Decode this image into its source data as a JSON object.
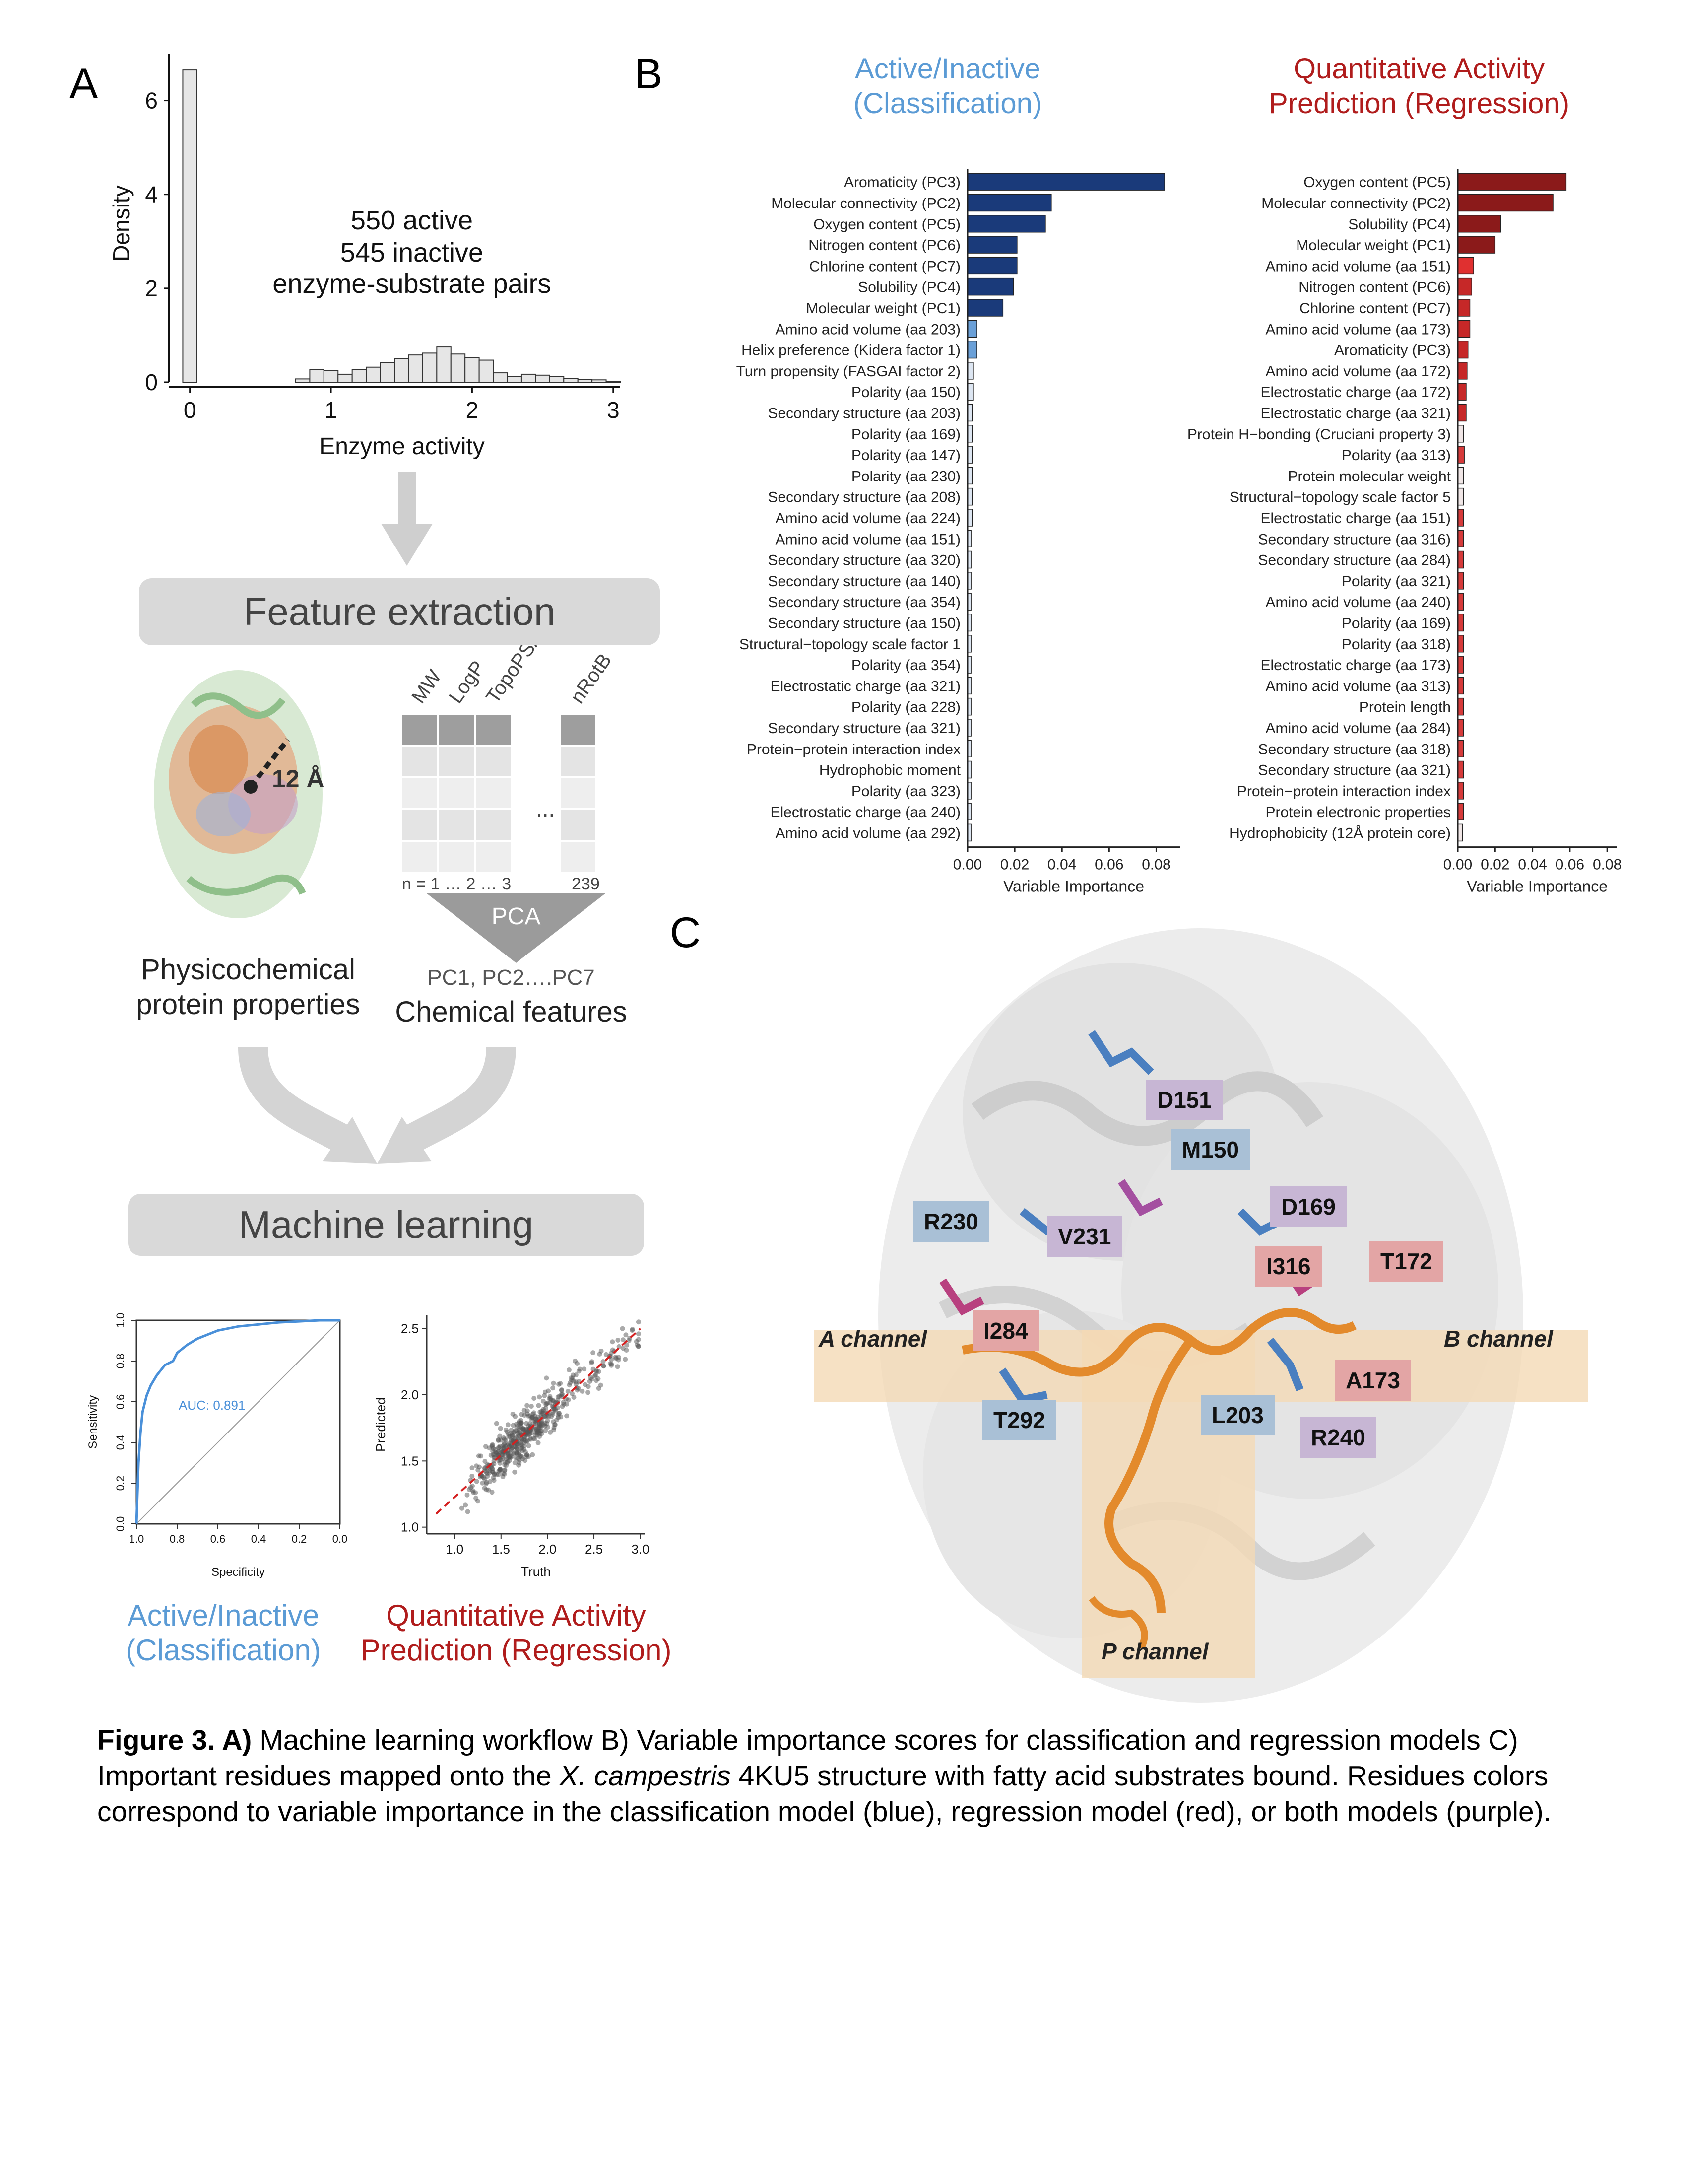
{
  "panel_labels": {
    "a": "A",
    "b": "B",
    "c": "C"
  },
  "panelA": {
    "histogram": {
      "ylabel": "Density",
      "xlabel": "Enzyme activity",
      "yticks": [
        "0",
        "2",
        "4",
        "6"
      ],
      "xticks": [
        "0",
        "1",
        "2",
        "3"
      ],
      "annot_line1": "550 active",
      "annot_line2": "545 inactive",
      "annot_line3": "enzyme-substrate pairs"
    },
    "feature_extraction": "Feature extraction",
    "distance_label": "12 Å",
    "matrix_cols": [
      "MW",
      "LogP",
      "TopoPSA",
      "nRotB"
    ],
    "matrix_ellipsis": "...",
    "matrix_index": "n = 1 … 2 … 3",
    "matrix_last": "239",
    "pca": "PCA",
    "pc_range": "PC1, PC2….PC7",
    "chem_features": "Chemical features",
    "physchem_line1": "Physicochemical",
    "physchem_line2": "protein properties",
    "machine_learning": "Machine learning",
    "roc": {
      "xlabel": "Specificity",
      "ylabel": "Sensitivity",
      "auc": "AUC: 0.891",
      "xticks": [
        "1.0",
        "0.8",
        "0.6",
        "0.4",
        "0.2",
        "0.0"
      ],
      "yticks": [
        "0.0",
        "0.2",
        "0.4",
        "0.6",
        "0.8",
        "1.0"
      ]
    },
    "scatter": {
      "xlabel": "Truth",
      "ylabel": "Predicted",
      "xticks": [
        "1.0",
        "1.5",
        "2.0",
        "2.5",
        "3.0"
      ],
      "yticks": [
        "1.0",
        "1.5",
        "2.0",
        "2.5"
      ]
    },
    "class_line1": "Active/Inactive",
    "class_line2": "(Classification)",
    "reg_line1": "Quantitative Activity",
    "reg_line2": "Prediction (Regression)"
  },
  "panelB": {
    "class_title1": "Active/Inactive",
    "class_title2": "(Classification)",
    "reg_title1": "Quantitative Activity",
    "reg_title2": "Prediction (Regression)",
    "xlabel": "Variable Importance"
  },
  "panelC": {
    "channels": [
      "A channel",
      "B channel",
      "P channel"
    ],
    "residues": [
      "D151",
      "M150",
      "R230",
      "V231",
      "D169",
      "I316",
      "T172",
      "I284",
      "A173",
      "L203",
      "R240",
      "T292"
    ]
  },
  "caption": {
    "bold": "Figure 3. A)",
    "part1": " Machine learning workflow B) Variable importance scores for classification and regression models C) Important residues mapped onto the ",
    "italic": "X. campestris",
    "part2": " 4KU5 structure with fatty acid  substrates bound. Residues colors correspond to variable importance in the classification model (blue), regression model (red), or both models (purple)."
  },
  "chart_data": [
    {
      "type": "bar",
      "id": "histogram",
      "xlabel": "Enzyme activity",
      "ylabel": "Density",
      "xlim": [
        -0.1,
        3.1
      ],
      "ylim": [
        0,
        7
      ],
      "bin_width": 0.1,
      "bin_starts": [
        0.0,
        0.8,
        0.9,
        1.0,
        1.1,
        1.2,
        1.3,
        1.4,
        1.5,
        1.6,
        1.7,
        1.8,
        1.9,
        2.0,
        2.1,
        2.2,
        2.3,
        2.4,
        2.5,
        2.6,
        2.7,
        2.8,
        2.9,
        3.0
      ],
      "values": [
        6.65,
        0.07,
        0.27,
        0.25,
        0.17,
        0.27,
        0.32,
        0.42,
        0.5,
        0.58,
        0.62,
        0.75,
        0.6,
        0.52,
        0.47,
        0.2,
        0.12,
        0.17,
        0.15,
        0.12,
        0.08,
        0.06,
        0.05,
        0.02
      ],
      "grid": false
    },
    {
      "type": "bar",
      "id": "classification_importance",
      "orientation": "horizontal",
      "xlabel": "Variable Importance",
      "xlim": [
        0,
        0.09
      ],
      "xticks": [
        0.0,
        0.02,
        0.04,
        0.06,
        0.08
      ],
      "categories": [
        "Aromaticity (PC3)",
        "Molecular connectivity (PC2)",
        "Oxygen content (PC5)",
        "Nitrogen content (PC6)",
        "Chlorine content (PC7)",
        "Solubility (PC4)",
        "Molecular weight (PC1)",
        "Amino acid volume (aa 203)",
        "Helix preference (Kidera factor 1)",
        "Turn propensity (FASGAI factor 2)",
        "Polarity (aa 150)",
        "Secondary structure (aa 203)",
        "Polarity (aa 169)",
        "Polarity (aa 147)",
        "Polarity (aa 230)",
        "Secondary structure (aa 208)",
        "Amino acid volume (aa 224)",
        "Amino acid volume (aa 151)",
        "Secondary structure (aa 320)",
        "Secondary structure (aa 140)",
        "Secondary structure (aa 354)",
        "Secondary structure (aa 150)",
        "Structural−topology scale factor 1",
        "Polarity (aa 354)",
        "Electrostatic charge (aa 321)",
        "Polarity (aa 228)",
        "Secondary structure (aa 321)",
        "Protein−protein interaction index",
        "Hydrophobic moment",
        "Polarity (aa 323)",
        "Electrostatic charge (aa 240)",
        "Amino acid volume (aa 292)"
      ],
      "values": [
        0.0835,
        0.0355,
        0.033,
        0.021,
        0.021,
        0.0195,
        0.015,
        0.004,
        0.004,
        0.0025,
        0.0025,
        0.002,
        0.002,
        0.002,
        0.002,
        0.002,
        0.002,
        0.0015,
        0.0015,
        0.0015,
        0.0015,
        0.0015,
        0.0015,
        0.0015,
        0.0015,
        0.0015,
        0.0015,
        0.0015,
        0.0015,
        0.0015,
        0.0015,
        0.0015
      ],
      "grid": false
    },
    {
      "type": "bar",
      "id": "regression_importance",
      "orientation": "horizontal",
      "xlabel": "Variable Importance",
      "xlim": [
        0,
        0.085
      ],
      "xticks": [
        0.0,
        0.02,
        0.04,
        0.06,
        0.08
      ],
      "categories": [
        "Oxygen content (PC5)",
        "Molecular connectivity (PC2)",
        "Solubility (PC4)",
        "Molecular weight (PC1)",
        "Amino acid volume (aa 151)",
        "Nitrogen content (PC6)",
        "Chlorine content (PC7)",
        "Amino acid volume (aa 173)",
        "Aromaticity (PC3)",
        "Amino acid volume (aa 172)",
        "Electrostatic charge (aa 172)",
        "Electrostatic charge (aa 321)",
        "Protein H−bonding (Cruciani property 3)",
        "Polarity (aa 313)",
        "Protein molecular weight",
        "Structural−topology scale factor 5",
        "Electrostatic charge (aa 151)",
        "Secondary structure (aa 316)",
        "Secondary structure (aa 284)",
        "Polarity (aa 321)",
        "Amino acid volume (aa 240)",
        "Polarity (aa 169)",
        "Polarity (aa 318)",
        "Electrostatic charge (aa 173)",
        "Amino acid volume (aa 313)",
        "Protein length",
        "Amino acid volume (aa 284)",
        "Secondary structure (aa 318)",
        "Secondary structure (aa 321)",
        "Protein−protein interaction index",
        "Protein electronic properties",
        "Hydrophobicity (12Å protein core)"
      ],
      "values": [
        0.058,
        0.051,
        0.023,
        0.02,
        0.0085,
        0.0075,
        0.0065,
        0.0065,
        0.0055,
        0.005,
        0.0045,
        0.0045,
        0.003,
        0.0035,
        0.003,
        0.003,
        0.003,
        0.003,
        0.003,
        0.003,
        0.003,
        0.003,
        0.003,
        0.003,
        0.003,
        0.003,
        0.003,
        0.003,
        0.003,
        0.003,
        0.003,
        0.0025
      ],
      "grid": false
    },
    {
      "type": "line",
      "id": "roc_curve",
      "xlabel": "Specificity",
      "ylabel": "Sensitivity",
      "x_reversed": true,
      "xlim": [
        1.0,
        0.0
      ],
      "ylim": [
        0.0,
        1.0
      ],
      "annotation": "AUC: 0.891",
      "x": [
        1.0,
        0.995,
        0.99,
        0.98,
        0.97,
        0.95,
        0.93,
        0.9,
        0.86,
        0.82,
        0.8,
        0.75,
        0.7,
        0.6,
        0.5,
        0.4,
        0.3,
        0.2,
        0.1,
        0.0
      ],
      "y": [
        0.0,
        0.15,
        0.3,
        0.45,
        0.55,
        0.63,
        0.68,
        0.73,
        0.78,
        0.8,
        0.84,
        0.88,
        0.91,
        0.95,
        0.97,
        0.98,
        0.99,
        0.995,
        1.0,
        1.0
      ],
      "grid": false
    },
    {
      "type": "scatter",
      "id": "regression_scatter",
      "xlabel": "Truth",
      "ylabel": "Predicted",
      "xlim": [
        0.7,
        3.05
      ],
      "ylim": [
        0.95,
        2.6
      ],
      "fit_line": {
        "x": [
          0.8,
          3.0
        ],
        "y": [
          1.1,
          2.5
        ]
      },
      "grid": false
    }
  ]
}
